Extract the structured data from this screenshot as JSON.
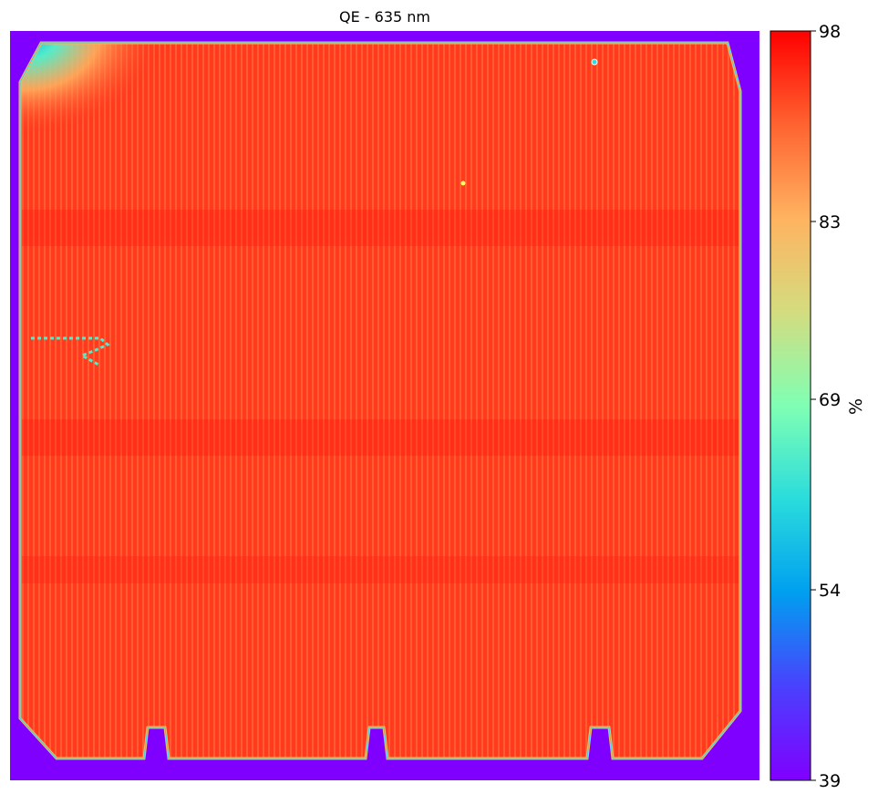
{
  "chart_data": {
    "type": "heatmap",
    "title": "QE - 635 nm",
    "colorbar": {
      "label": "%",
      "range": [
        39,
        98
      ],
      "ticks": [
        "39",
        "54",
        "69",
        "83",
        "98"
      ],
      "colormap": "rainbow",
      "colors": [
        "#8000ff",
        "#2f6ffb",
        "#00b5eb",
        "#2adcdc",
        "#80ffb4",
        "#d4dc7f",
        "#ffb360",
        "#ff6330",
        "#ff0000"
      ]
    },
    "background_value": 39,
    "cell_typical_value": 95,
    "cell_edge_value": 88,
    "low_region_upper_left_value": 55,
    "grid": false,
    "axes_visible": false
  }
}
